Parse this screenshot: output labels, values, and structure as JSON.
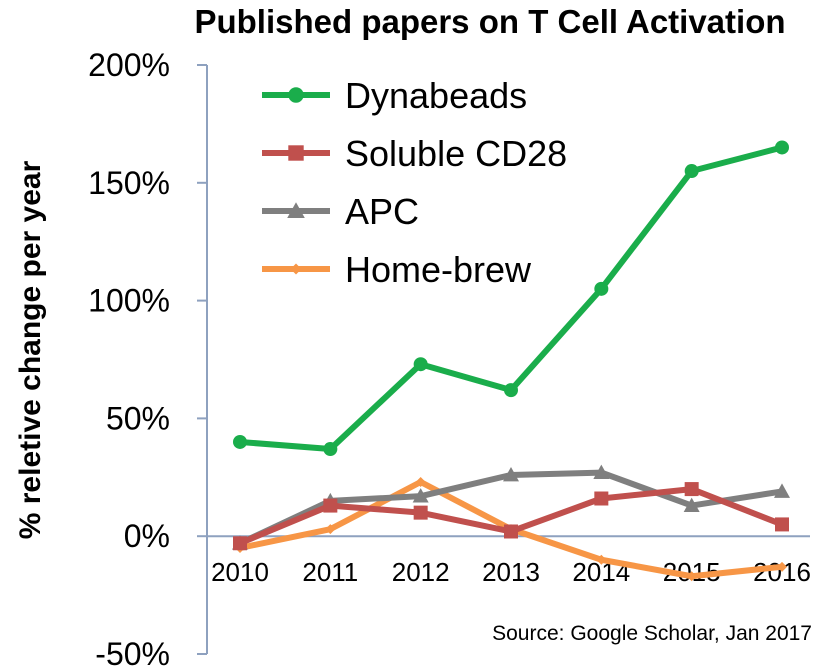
{
  "chart_data": {
    "type": "line",
    "title": "Published papers on T Cell Activation",
    "ylabel": "% reletive change per year",
    "xlabel": "",
    "categories": [
      "2010",
      "2011",
      "2012",
      "2013",
      "2014",
      "2015",
      "2016"
    ],
    "ylim": [
      -50,
      200
    ],
    "yticks": [
      -50,
      0,
      50,
      100,
      150,
      200
    ],
    "ytick_labels": [
      "-50%",
      "0%",
      "50%",
      "100%",
      "150%",
      "200%"
    ],
    "grid": false,
    "legend_position": "top-left",
    "series": [
      {
        "name": "Dynabeads",
        "color": "#1aad4b",
        "marker": "circle",
        "values": [
          40,
          37,
          73,
          62,
          105,
          155,
          165
        ]
      },
      {
        "name": "Soluble CD28",
        "color": "#c0504d",
        "marker": "square",
        "values": [
          -3,
          13,
          10,
          2,
          16,
          20,
          5
        ]
      },
      {
        "name": "APC",
        "color": "#7f7f7f",
        "marker": "triangle",
        "values": [
          -3,
          15,
          17,
          26,
          27,
          13,
          19
        ]
      },
      {
        "name": "Home-brew",
        "color": "#f79646",
        "marker": "diamond",
        "values": [
          -5,
          3,
          23,
          3,
          -10,
          -17,
          -13
        ]
      }
    ],
    "annotation": "Source: Google Scholar, Jan 2017"
  }
}
